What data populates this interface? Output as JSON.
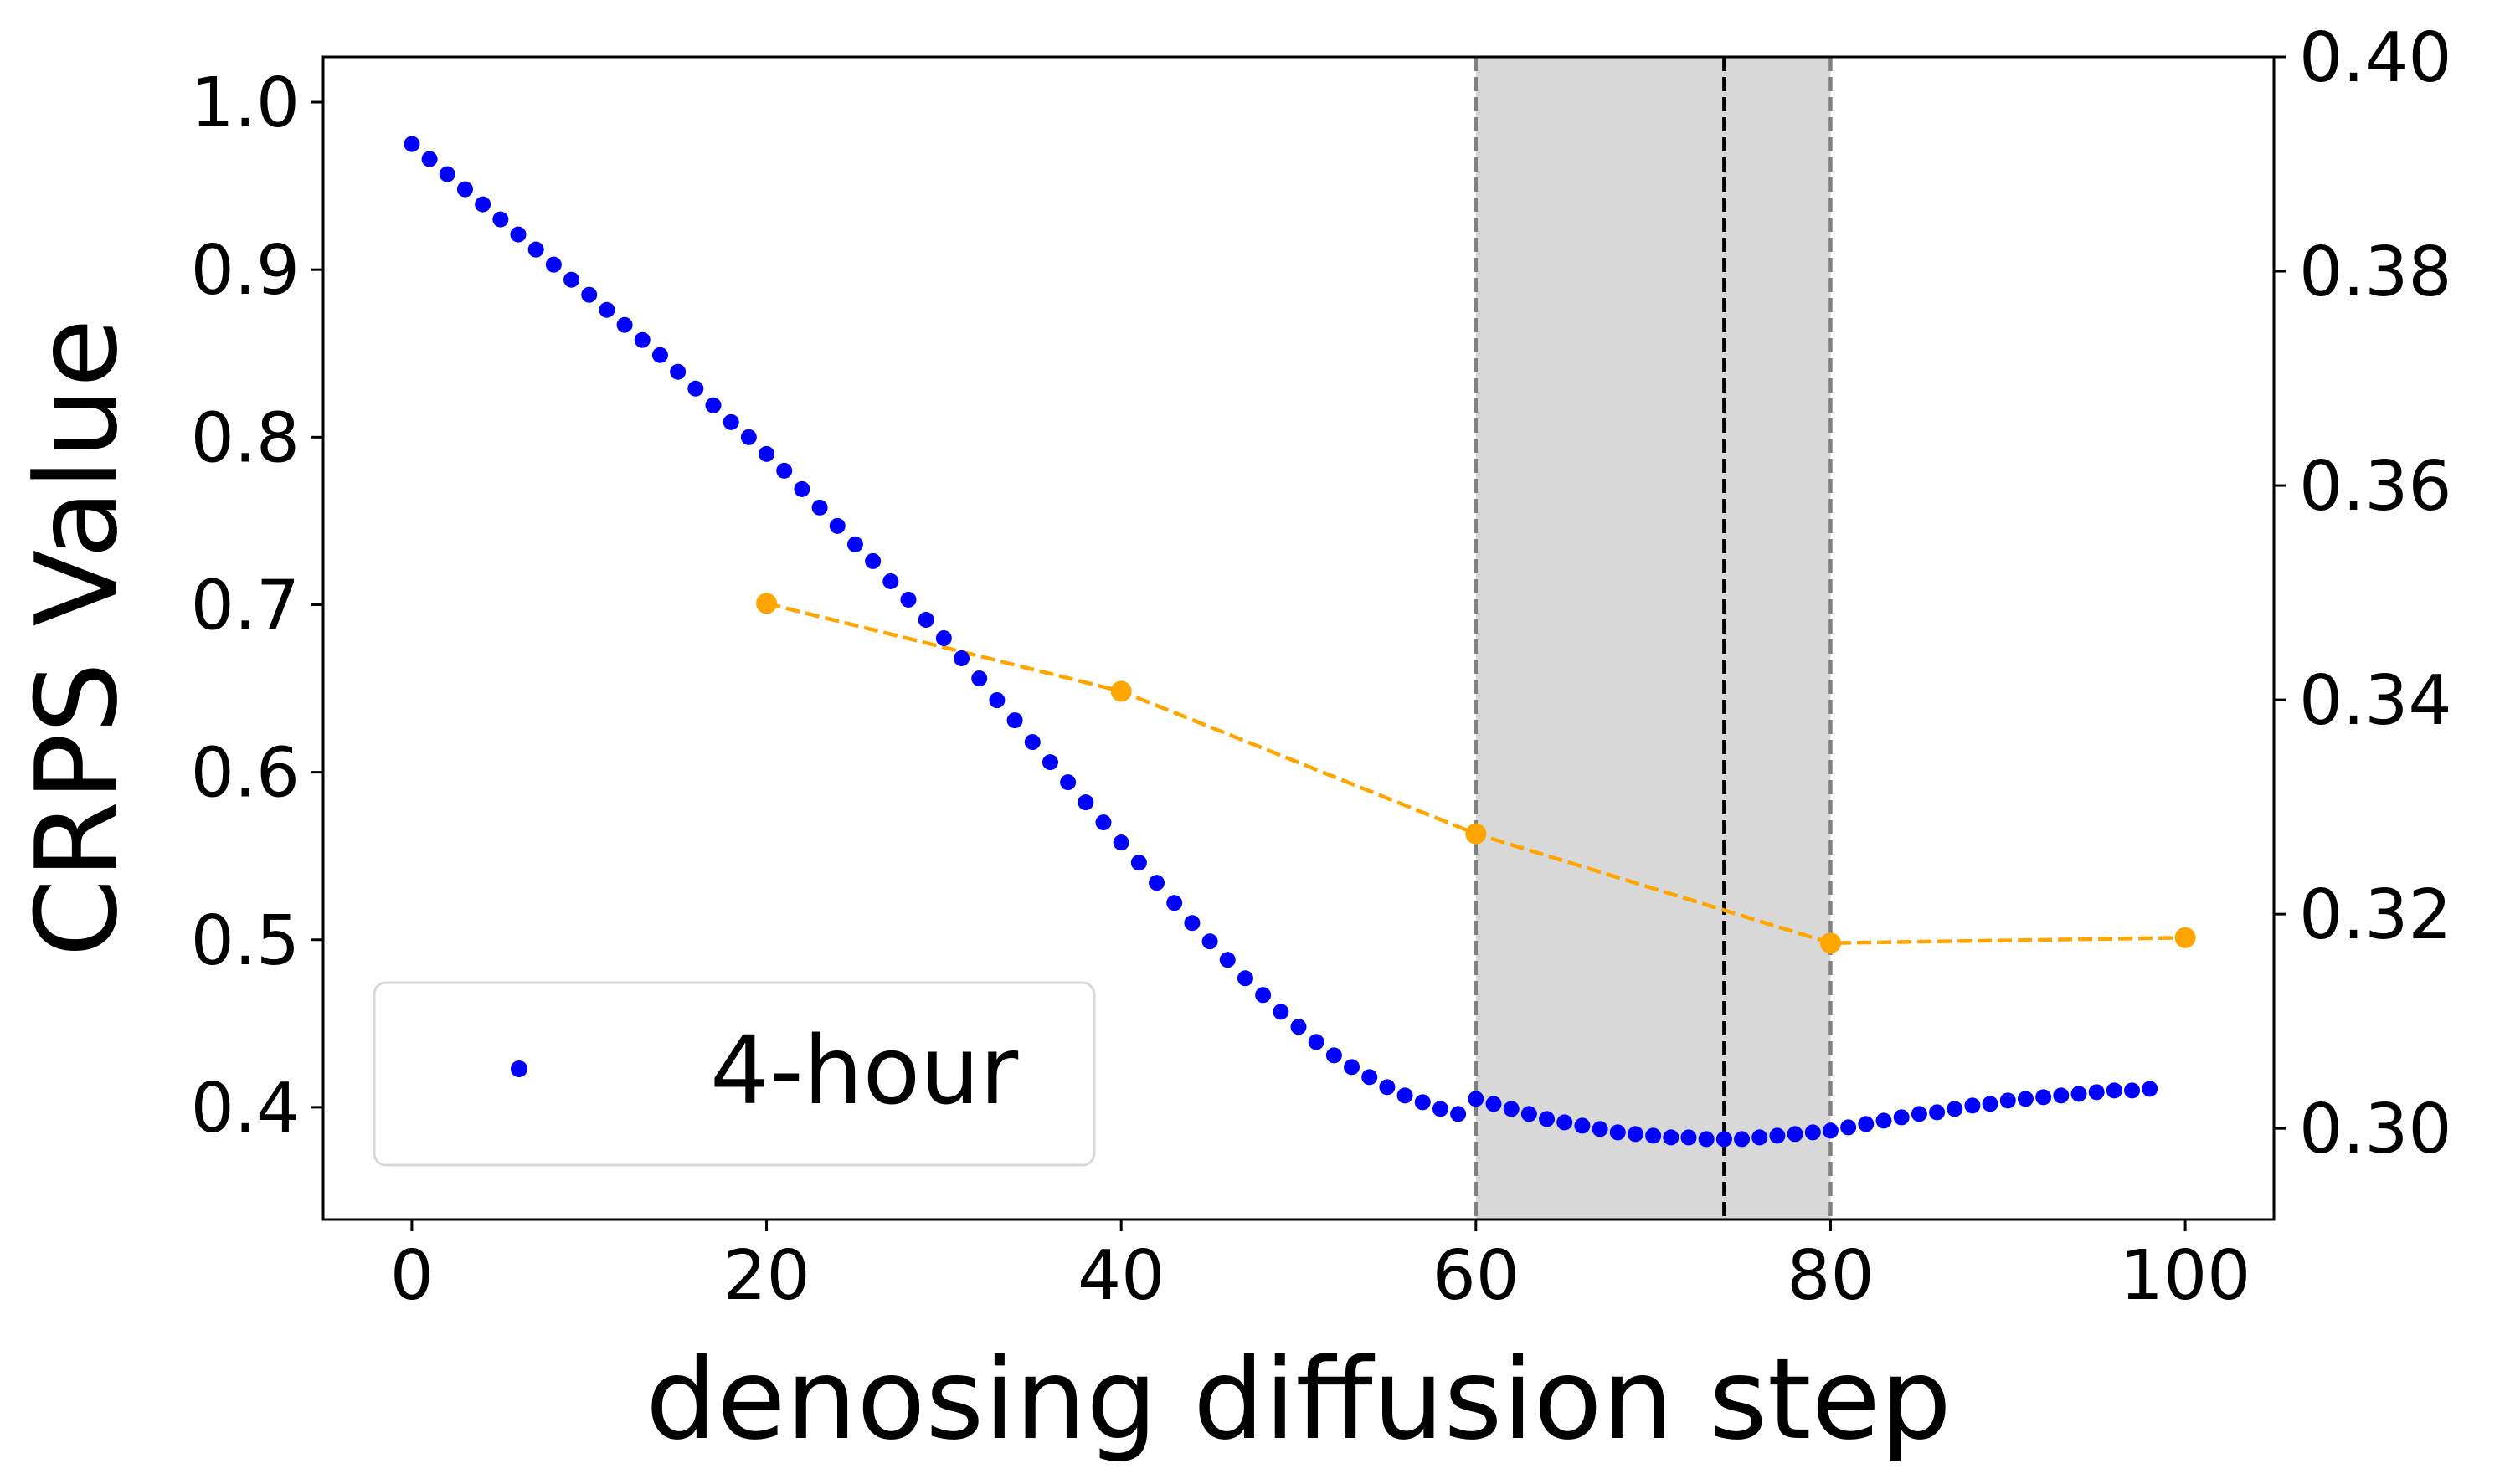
{
  "chart_data": {
    "type": "scatter",
    "title": "",
    "xlabel": "denosing diffusion step",
    "ylabel": "CRPS Value",
    "xlim": [
      -5,
      105
    ],
    "ylim": [
      0.333,
      1.027
    ],
    "ylim_right": [
      0.2915,
      0.4
    ],
    "xticks": [
      "0",
      "20",
      "40",
      "60",
      "80",
      "100"
    ],
    "yticks": [
      "0.4",
      "0.5",
      "0.6",
      "0.7",
      "0.8",
      "0.9",
      "1.0"
    ],
    "yticks_right": [
      "0.30",
      "0.32",
      "0.34",
      "0.36",
      "0.38",
      "0.40"
    ],
    "shaded_region": {
      "x_start": 60,
      "x_end": 80,
      "color": "#d8d8d8"
    },
    "vlines": [
      {
        "x": 60,
        "color": "#808080",
        "style": "dashed"
      },
      {
        "x": 74,
        "color": "#000000",
        "style": "dashed"
      },
      {
        "x": 80,
        "color": "#808080",
        "style": "dashed"
      }
    ],
    "series": [
      {
        "name": "4-hour",
        "axis": "left",
        "marker": "dot",
        "color": "#0000ff",
        "x": [
          0,
          1,
          2,
          3,
          4,
          5,
          6,
          7,
          8,
          9,
          10,
          11,
          12,
          13,
          14,
          15,
          16,
          17,
          18,
          19,
          20,
          21,
          22,
          23,
          24,
          25,
          26,
          27,
          28,
          29,
          30,
          31,
          32,
          33,
          34,
          35,
          36,
          37,
          38,
          39,
          40,
          41,
          42,
          43,
          44,
          45,
          46,
          47,
          48,
          49,
          50,
          51,
          52,
          53,
          54,
          55,
          56,
          57,
          58,
          59,
          60,
          61,
          62,
          63,
          64,
          65,
          66,
          67,
          68,
          69,
          70,
          71,
          72,
          73,
          74,
          75,
          76,
          77,
          78,
          79,
          80,
          81,
          82,
          83,
          84,
          85,
          86,
          87,
          88,
          89,
          90,
          91,
          92,
          93,
          94,
          95,
          96,
          97,
          98
        ],
        "values": [
          0.975,
          0.966,
          0.957,
          0.948,
          0.939,
          0.93,
          0.921,
          0.912,
          0.903,
          0.894,
          0.885,
          0.876,
          0.867,
          0.858,
          0.849,
          0.839,
          0.829,
          0.819,
          0.809,
          0.8,
          0.79,
          0.78,
          0.769,
          0.758,
          0.747,
          0.736,
          0.726,
          0.714,
          0.703,
          0.691,
          0.68,
          0.668,
          0.656,
          0.643,
          0.631,
          0.618,
          0.606,
          0.594,
          0.582,
          0.57,
          0.558,
          0.546,
          0.534,
          0.522,
          0.51,
          0.499,
          0.488,
          0.477,
          0.467,
          0.457,
          0.448,
          0.439,
          0.431,
          0.424,
          0.418,
          0.412,
          0.407,
          0.403,
          0.399,
          0.396,
          0.405,
          0.402,
          0.399,
          0.396,
          0.393,
          0.391,
          0.389,
          0.387,
          0.385,
          0.384,
          0.383,
          0.382,
          0.382,
          0.381,
          0.381,
          0.381,
          0.382,
          0.383,
          0.384,
          0.385,
          0.386,
          0.388,
          0.39,
          0.392,
          0.394,
          0.396,
          0.397,
          0.399,
          0.401,
          0.402,
          0.404,
          0.405,
          0.406,
          0.407,
          0.408,
          0.409,
          0.41,
          0.41,
          0.411
        ]
      },
      {
        "name": "",
        "axis": "right",
        "marker": "circle",
        "line": "dashed",
        "color": "#ffa500",
        "x": [
          20,
          40,
          60,
          80,
          100
        ],
        "values": [
          0.349,
          0.3408,
          0.3275,
          0.3173,
          0.3178
        ]
      }
    ],
    "legend": {
      "placement": "lower-left",
      "entries": [
        "4-hour"
      ]
    }
  }
}
